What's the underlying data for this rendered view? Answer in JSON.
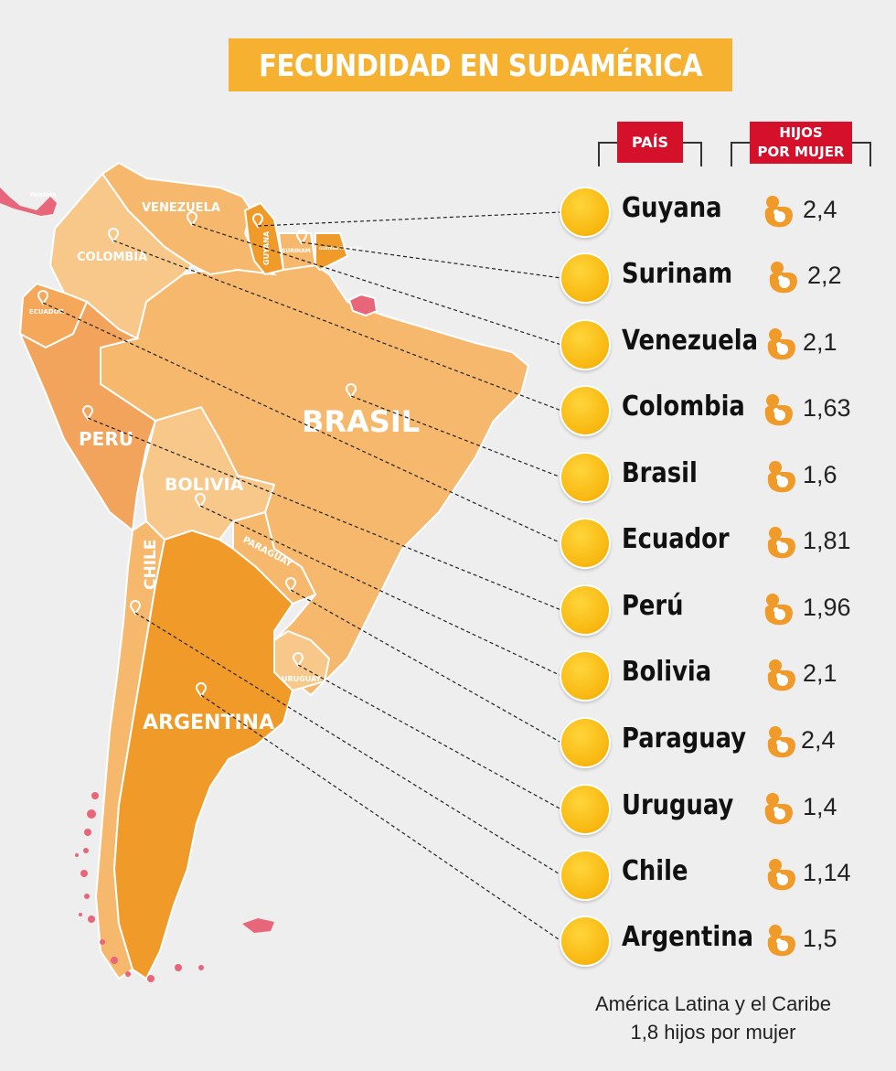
{
  "title": "FECUNDIDAD EN SUDAMÉRICA",
  "header_country": "PAÍS",
  "header_children": [
    "HIJOS",
    "POR MUJER"
  ],
  "map_labels": {
    "venezuela": "VENEZUELA",
    "colombia": "COLOMBIA",
    "ecuador": "ECUADOR",
    "peru": "PERU",
    "brasil": "BRASIL",
    "bolivia": "BOLIVIA",
    "paraguay": "PARAGUAY",
    "chile": "CHILE",
    "argentina": "ARGENTINA",
    "uruguay": "URUGUAY",
    "guyana": "GUYANA",
    "surinam": "SURINAM",
    "guyana_francesa": "GUAYANA FRANCESA",
    "panama": "PANAMA"
  },
  "countries": [
    {
      "name": "Guyana",
      "value": "2,4"
    },
    {
      "name": "Surinam",
      "value": "2,2"
    },
    {
      "name": "Venezuela",
      "value": "2,1"
    },
    {
      "name": "Colombia",
      "value": "1,63"
    },
    {
      "name": "Brasil",
      "value": "1,6"
    },
    {
      "name": "Ecuador",
      "value": "1,81"
    },
    {
      "name": "Perú",
      "value": "1,96"
    },
    {
      "name": "Bolivia",
      "value": "2,1"
    },
    {
      "name": "Paraguay",
      "value": "2,4"
    },
    {
      "name": "Uruguay",
      "value": "1,4"
    },
    {
      "name": "Chile",
      "value": "1,14"
    },
    {
      "name": "Argentina",
      "value": "1,5"
    }
  ],
  "footer": [
    "América Latina y el Caribe",
    "1,8 hijos por mujer"
  ],
  "colors": {
    "red": "#d4102a",
    "yellow": "#f6b131",
    "map_light": "#f7c27a",
    "map_mid": "#f5a85a",
    "map_dark": "#f09a2a",
    "island": "#e8667a"
  },
  "icon": "mother-child-icon"
}
